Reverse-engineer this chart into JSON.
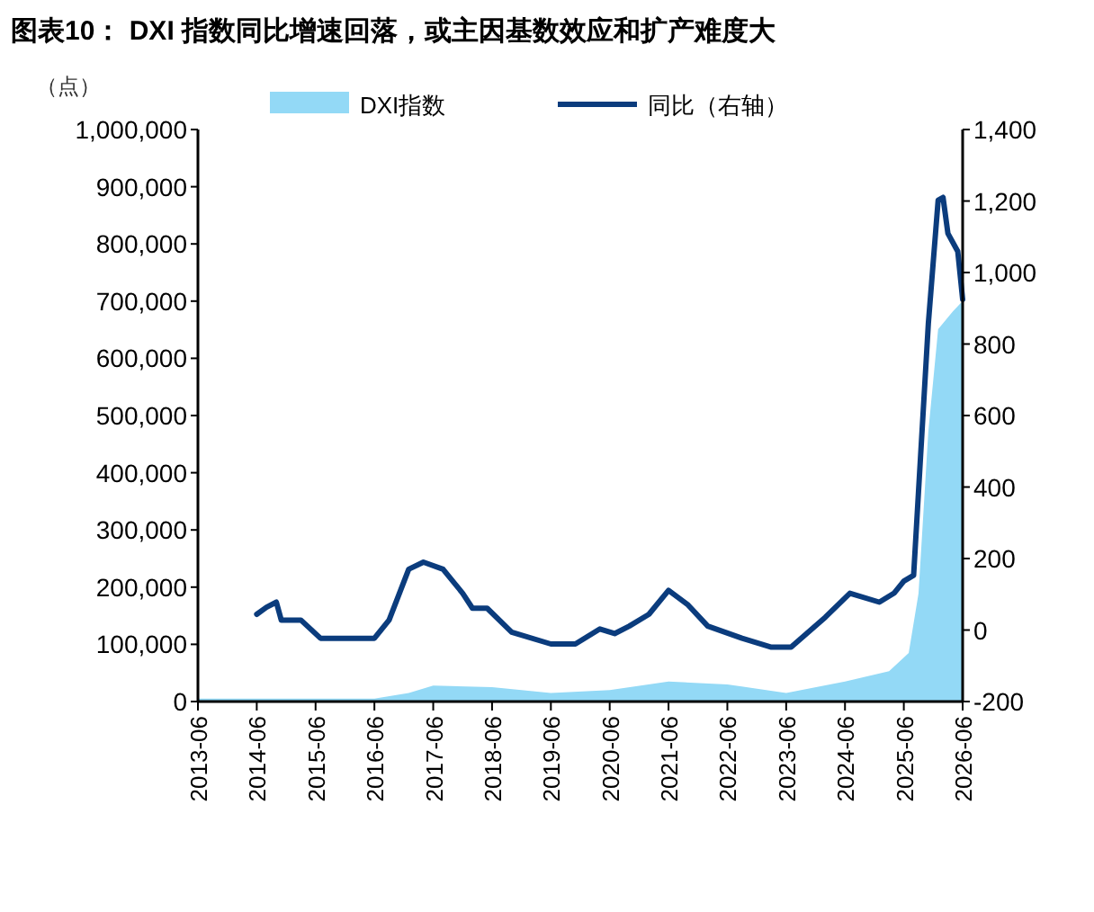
{
  "chart_data": {
    "type": "line",
    "title": "图表10： DXI 指数同比增速回落，或主因基数效应和扩产难度大",
    "ylabel": "（点）",
    "legend": "top",
    "series": [
      {
        "name": "DXI指数",
        "type": "area",
        "color": "#93d9f6",
        "x": [
          "2013-06",
          "2016-06",
          "2017-01",
          "2017-06",
          "2018-06",
          "2019-06",
          "2020-06",
          "2021-06",
          "2022-06",
          "2023-06",
          "2024-06",
          "2025-03",
          "2025-07",
          "2025-09",
          "2025-11",
          "2026-01",
          "2026-04",
          "2026-06"
        ],
        "values": [
          5000,
          5000,
          15000,
          28000,
          25000,
          15000,
          20000,
          35000,
          30000,
          15000,
          35000,
          53000,
          85000,
          189000,
          472000,
          651000,
          682000,
          700000
        ]
      },
      {
        "name": "同比（右轴）",
        "type": "line",
        "axis": "y2",
        "color": "#0b3c7d",
        "x": [
          "2014-06",
          "2014-08",
          "2014-10",
          "2014-11",
          "2015-03",
          "2015-07",
          "2016-03",
          "2016-06",
          "2016-09",
          "2017-01",
          "2017-04",
          "2017-08",
          "2017-12",
          "2018-02",
          "2018-05",
          "2018-10",
          "2019-06",
          "2019-11",
          "2020-04",
          "2020-07",
          "2020-10",
          "2021-02",
          "2021-06",
          "2021-10",
          "2022-02",
          "2022-09",
          "2023-03",
          "2023-07",
          "2024-02",
          "2024-07",
          "2025-01",
          "2025-04",
          "2025-06",
          "2025-08",
          "2025-09",
          "2025-11",
          "2026-01",
          "2026-02",
          "2026-03",
          "2026-05",
          "2026-06"
        ],
        "values": [
          44,
          64,
          78,
          28,
          28,
          -23,
          -23,
          -23,
          28,
          170,
          190,
          170,
          103,
          61,
          61,
          -6,
          -39,
          -39,
          3,
          -10,
          11,
          44,
          111,
          70,
          11,
          -23,
          -48,
          -48,
          36,
          103,
          78,
          103,
          137,
          153,
          388,
          857,
          1202,
          1210,
          1109,
          1059,
          925
        ]
      }
    ],
    "xlim": [
      "2013-06",
      "2026-06"
    ],
    "xticks": [
      "2013-06",
      "2014-06",
      "2015-06",
      "2016-06",
      "2017-06",
      "2018-06",
      "2019-06",
      "2020-06",
      "2021-06",
      "2022-06",
      "2023-06",
      "2024-06",
      "2025-06",
      "2026-06"
    ],
    "ylim": [
      0,
      1000000
    ],
    "yticks": [
      {
        "value": 0,
        "label": "0"
      },
      {
        "value": 100000,
        "label": "100,000"
      },
      {
        "value": 200000,
        "label": "200,000"
      },
      {
        "value": 300000,
        "label": "300,000"
      },
      {
        "value": 400000,
        "label": "400,000"
      },
      {
        "value": 500000,
        "label": "500,000"
      },
      {
        "value": 600000,
        "label": "600,000"
      },
      {
        "value": 700000,
        "label": "700,000"
      },
      {
        "value": 800000,
        "label": "800,000"
      },
      {
        "value": 900000,
        "label": "900,000"
      },
      {
        "value": 1000000,
        "label": "1,000,000"
      }
    ],
    "y2lim": [
      -200,
      1400
    ],
    "y2ticks": [
      -200,
      0,
      200,
      400,
      600,
      800,
      {
        "value": 1000,
        "label": "1,000"
      },
      {
        "value": 1200,
        "label": "1,200"
      },
      {
        "value": 1400,
        "label": "1,400"
      }
    ],
    "grid": false
  }
}
